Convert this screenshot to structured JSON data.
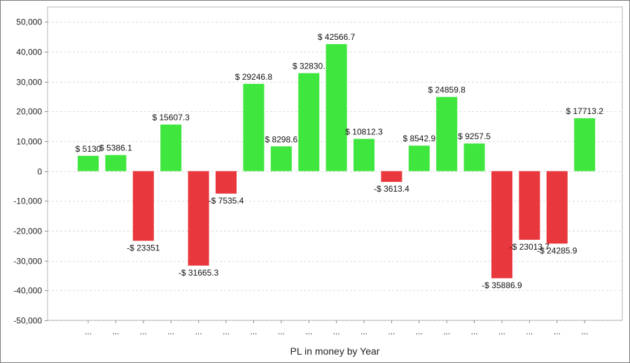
{
  "chart_data": {
    "type": "bar",
    "xlabel": "PL in money by Year",
    "ylabel": "",
    "ylim": [
      -50000,
      55000
    ],
    "y_ticks": [
      50000,
      40000,
      30000,
      20000,
      10000,
      0,
      -10000,
      -20000,
      -30000,
      -40000,
      -50000
    ],
    "y_tick_labels": [
      "50,000",
      "40,000",
      "30,000",
      "20,000",
      "10,000",
      "0",
      "-10,000",
      "-20,000",
      "-30,000",
      "-40,000",
      "-50,000"
    ],
    "grid": true,
    "categories": [
      "...",
      "...",
      "...",
      "...",
      "...",
      "...",
      "...",
      "...",
      "...",
      "...",
      "...",
      "...",
      "...",
      "...",
      "...",
      "...",
      "...",
      "...",
      "..."
    ],
    "values": [
      5130,
      5386.1,
      -23351,
      15607.3,
      -31665.3,
      -7535.4,
      29246.8,
      8298.6,
      32830,
      42566.7,
      10812.3,
      -3613.4,
      8542.9,
      24859.8,
      9257.5,
      -35886.9,
      -23013.7,
      -24285.9,
      17713.2
    ],
    "data_labels": [
      "$ 5130",
      "$ 5386.1",
      "-$ 23351",
      "$ 15607.3",
      "-$ 31665.3",
      "-$ 7535.4",
      "$ 29246.8",
      "$ 8298.6",
      "$ 32830.",
      "$ 42566.7",
      "$ 10812.3",
      "-$ 3613.4",
      "$ 8542.9",
      "$ 24859.8",
      "$ 9257.5",
      "-$ 35886.9",
      "-$ 23013.7",
      "-$ 24285.9",
      "$ 17713.2"
    ],
    "colors": {
      "positive": "#3ee63e",
      "negative": "#e8383d",
      "grid": "#dcdcdc",
      "axis": "#888888"
    }
  }
}
